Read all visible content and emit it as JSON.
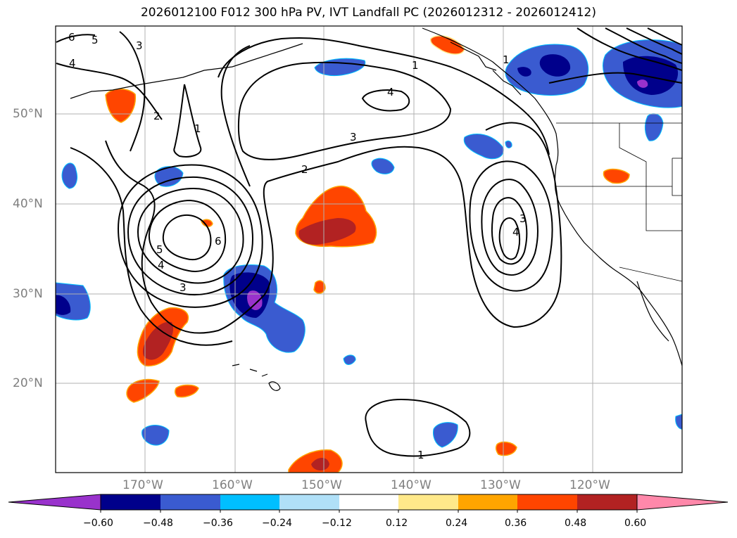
{
  "title": "2026012100 F012 300 hPa PV, IVT Landfall PC (2026012312 - 2026012412)",
  "map": {
    "lat_labels": [
      "50°N",
      "40°N",
      "30°N",
      "20°N"
    ],
    "lon_labels": [
      "170°W",
      "160°W",
      "150°W",
      "140°W",
      "130°W",
      "120°W"
    ],
    "contour_labels": [
      "6",
      "5",
      "4",
      "3",
      "2",
      "1",
      "1",
      "2",
      "3",
      "4",
      "1",
      "3",
      "4",
      "5",
      "6",
      "3",
      "4",
      "1"
    ],
    "colors": {
      "coast": "#000000",
      "grid": "#b0b0b0"
    }
  },
  "colorbar": {
    "tick_labels": [
      "−0.60",
      "−0.48",
      "−0.36",
      "−0.24",
      "−0.12",
      "0.12",
      "0.24",
      "0.36",
      "0.48",
      "0.60"
    ],
    "colors": [
      "#9932cc",
      "#00008b",
      "#3a5bd0",
      "#00bfff",
      "#b0e0f8",
      "#ffffff",
      "#ffe98a",
      "#ffa500",
      "#ff4500",
      "#b22222",
      "#ff88aa"
    ]
  }
}
